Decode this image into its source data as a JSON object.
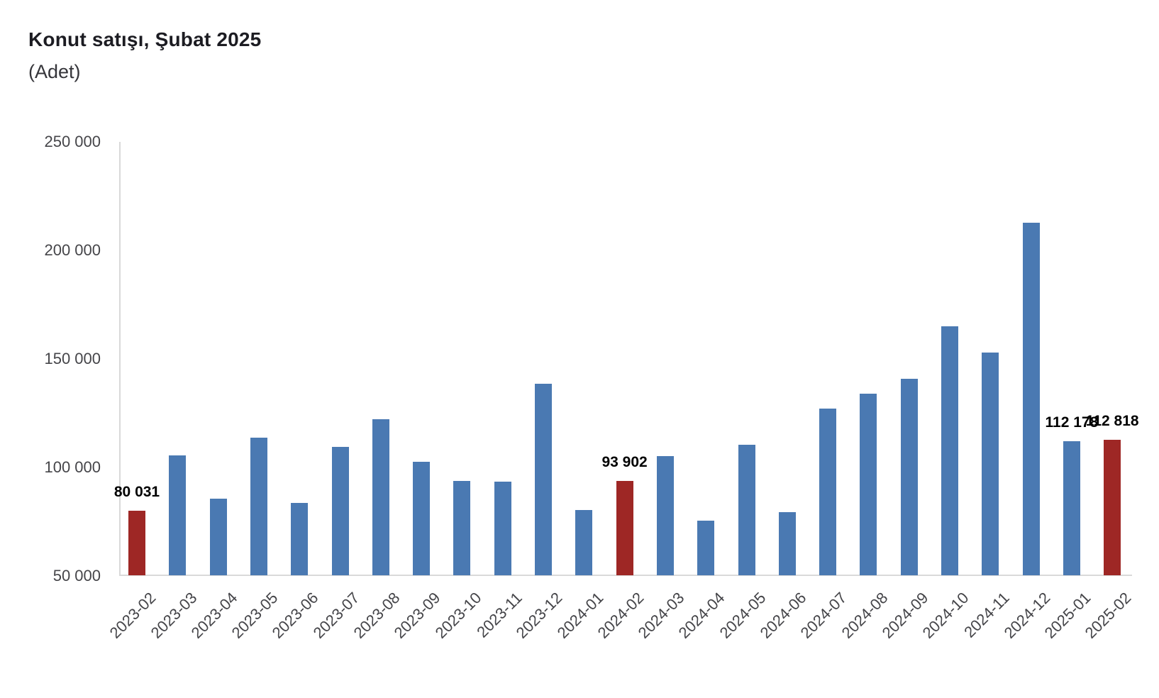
{
  "header": {
    "title": "Konut satışı, Şubat 2025",
    "subtitle": "(Adet)"
  },
  "chart_data": {
    "type": "bar",
    "title": "Konut satışı, Şubat 2025",
    "subtitle": "(Adet)",
    "unit_label": "Adet",
    "categories": [
      "2023-02",
      "2023-03",
      "2023-04",
      "2023-05",
      "2023-06",
      "2023-07",
      "2023-08",
      "2023-09",
      "2023-10",
      "2023-11",
      "2023-12",
      "2024-01",
      "2024-02",
      "2024-03",
      "2024-04",
      "2024-05",
      "2024-06",
      "2024-07",
      "2024-08",
      "2024-09",
      "2024-10",
      "2024-11",
      "2024-12",
      "2025-01",
      "2025-02"
    ],
    "values": [
      80031,
      105476,
      85652,
      113645,
      83636,
      109548,
      122091,
      102656,
      93761,
      93514,
      138577,
      80308,
      93902,
      105394,
      75569,
      110588,
      79313,
      127088,
      134155,
      140919,
      165138,
      153014,
      212637,
      112178,
      112818
    ],
    "highlight_categories": [
      "2023-02",
      "2024-02",
      "2025-02"
    ],
    "data_labels": [
      {
        "category": "2023-02",
        "label": "80 031"
      },
      {
        "category": "2024-02",
        "label": "93 902"
      },
      {
        "category": "2025-01",
        "label": "112 178"
      },
      {
        "category": "2025-02",
        "label": "112 818"
      }
    ],
    "ylim": [
      50000,
      250000
    ],
    "yticks": [
      {
        "value": 250000,
        "label": "250 000"
      },
      {
        "value": 200000,
        "label": "200 000"
      },
      {
        "value": 150000,
        "label": "150 000"
      },
      {
        "value": 100000,
        "label": "100 000"
      },
      {
        "value": 50000,
        "label": "50 000"
      }
    ],
    "grid": false,
    "legend": false,
    "colors": {
      "bar": "#4a79b2",
      "highlight": "#9e2725",
      "axis_line": "#d9d9d9",
      "tick_text": "#454549",
      "value_label_text": "#000000",
      "title_text": "#1c1c22"
    }
  }
}
